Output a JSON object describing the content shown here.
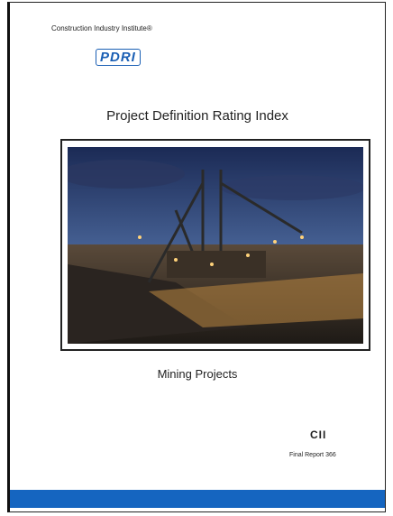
{
  "header": {
    "organization": "Construction Industry Institute®",
    "logo": "PDRI"
  },
  "title": "Project Definition Rating Index",
  "subtitle": "Mining Projects",
  "footer": {
    "logo": "CII",
    "report": "Final Report 366"
  }
}
